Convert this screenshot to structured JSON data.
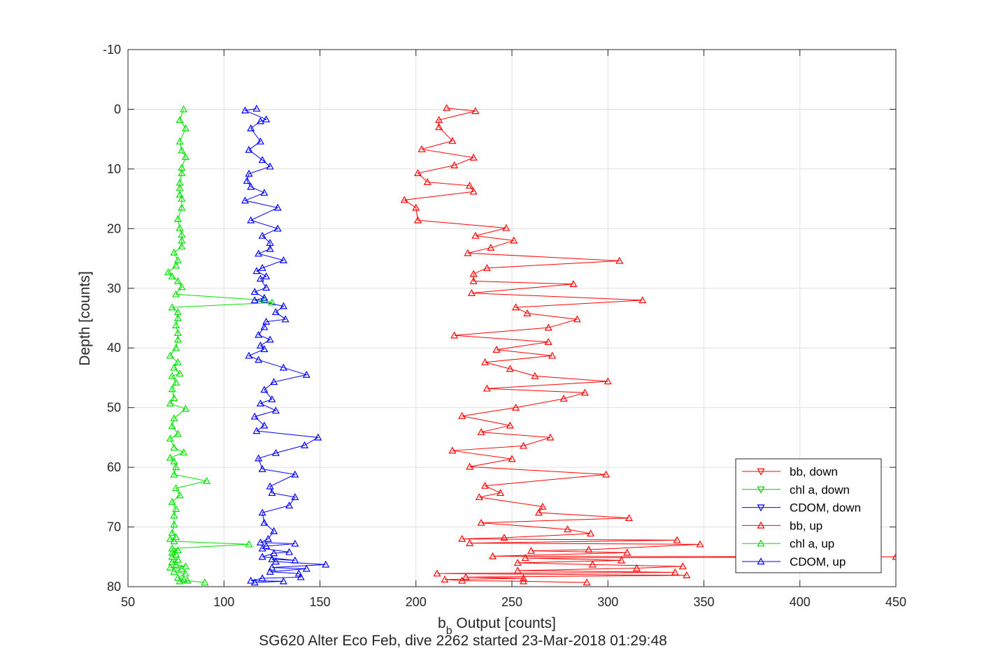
{
  "chart_data": {
    "type": "line",
    "title": "",
    "xlabel_main": "b",
    "xlabel_sub": "b",
    "xlabel_rest": " Output [counts]",
    "ylabel": "Depth [counts]",
    "footer": "SG620 Alter Eco Feb, dive 2262 started 23-Mar-2018 01:29:48",
    "xlim": [
      50,
      450
    ],
    "ylim": [
      -10,
      80
    ],
    "y_reversed": true,
    "xticks": [
      50,
      100,
      150,
      200,
      250,
      300,
      350,
      400,
      450
    ],
    "yticks": [
      -10,
      0,
      10,
      20,
      30,
      40,
      50,
      60,
      70,
      80
    ],
    "grid": true,
    "legend_position": "bottom-right",
    "series": [
      {
        "name": "bb, down",
        "color": "#ff0000",
        "marker": "triangle-down",
        "points": []
      },
      {
        "name": "chl a, down",
        "color": "#00cc00",
        "marker": "triangle-down",
        "points": []
      },
      {
        "name": "CDOM, down",
        "color": "#0000ff",
        "marker": "triangle-down",
        "points": []
      },
      {
        "name": "bb, up",
        "color": "#ff0000",
        "marker": "triangle-up",
        "points": [
          [
            289,
            79.3
          ],
          [
            256,
            79.1
          ],
          [
            224,
            79.0
          ],
          [
            215,
            78.8
          ],
          [
            256,
            78.6
          ],
          [
            226,
            78.4
          ],
          [
            341,
            78.1
          ],
          [
            211,
            77.8
          ],
          [
            335,
            77.6
          ],
          [
            253,
            77.3
          ],
          [
            315,
            76.9
          ],
          [
            339,
            76.6
          ],
          [
            292,
            76.3
          ],
          [
            253,
            76.0
          ],
          [
            307,
            75.6
          ],
          [
            257,
            75.2
          ],
          [
            450,
            75.0
          ],
          [
            240,
            74.9
          ],
          [
            310,
            74.3
          ],
          [
            260,
            74.0
          ],
          [
            290,
            73.8
          ],
          [
            348,
            72.9
          ],
          [
            228,
            72.7
          ],
          [
            336,
            72.2
          ],
          [
            224,
            72.0
          ],
          [
            246,
            71.8
          ],
          [
            291,
            71.1
          ],
          [
            279,
            70.4
          ],
          [
            234,
            69.3
          ],
          [
            311,
            68.5
          ],
          [
            264,
            67.6
          ],
          [
            266,
            66.6
          ],
          [
            233,
            65.0
          ],
          [
            244,
            64.3
          ],
          [
            236,
            63.1
          ],
          [
            299,
            61.2
          ],
          [
            228,
            59.9
          ],
          [
            250,
            58.6
          ],
          [
            219,
            57.2
          ],
          [
            256,
            56.4
          ],
          [
            270,
            55.0
          ],
          [
            234,
            54.1
          ],
          [
            249,
            53.0
          ],
          [
            224,
            51.4
          ],
          [
            252,
            50.0
          ],
          [
            277,
            48.5
          ],
          [
            288,
            47.5
          ],
          [
            237,
            46.8
          ],
          [
            300,
            45.6
          ],
          [
            262,
            44.7
          ],
          [
            249,
            43.5
          ],
          [
            236,
            42.4
          ],
          [
            271,
            41.3
          ],
          [
            242,
            40.3
          ],
          [
            269,
            39.0
          ],
          [
            220,
            37.9
          ],
          [
            269,
            36.6
          ],
          [
            284,
            35.2
          ],
          [
            258,
            34.2
          ],
          [
            252,
            33.2
          ],
          [
            318,
            32.0
          ],
          [
            229,
            30.8
          ],
          [
            282,
            29.3
          ],
          [
            230,
            28.8
          ],
          [
            230,
            27.6
          ],
          [
            237,
            26.6
          ],
          [
            306,
            25.4
          ],
          [
            227,
            24.1
          ],
          [
            239,
            23.2
          ],
          [
            251,
            22.0
          ],
          [
            231,
            21.2
          ],
          [
            247,
            19.9
          ],
          [
            201,
            18.6
          ],
          [
            200,
            16.5
          ],
          [
            194,
            15.2
          ],
          [
            230,
            13.8
          ],
          [
            228,
            12.8
          ],
          [
            206,
            12.2
          ],
          [
            201,
            10.7
          ],
          [
            220,
            9.4
          ],
          [
            230,
            8.1
          ],
          [
            203,
            6.7
          ],
          [
            219,
            5.3
          ],
          [
            212,
            3.0
          ],
          [
            212,
            1.8
          ],
          [
            231,
            0.3
          ],
          [
            216,
            -0.2
          ]
        ]
      },
      {
        "name": "chl a, up",
        "color": "#00e000",
        "marker": "triangle-up",
        "points": [
          [
            90,
            79.3
          ],
          [
            81,
            79.0
          ],
          [
            77,
            79.1
          ],
          [
            79,
            78.8
          ],
          [
            76,
            78.5
          ],
          [
            80,
            77.8
          ],
          [
            74,
            77.5
          ],
          [
            78,
            77.0
          ],
          [
            72,
            76.8
          ],
          [
            80,
            76.6
          ],
          [
            75,
            76.3
          ],
          [
            73,
            75.9
          ],
          [
            76,
            75.5
          ],
          [
            73,
            75.0
          ],
          [
            75,
            74.6
          ],
          [
            73,
            74.3
          ],
          [
            76,
            73.9
          ],
          [
            73,
            73.6
          ],
          [
            113,
            72.9
          ],
          [
            74,
            72.4
          ],
          [
            72,
            72.0
          ],
          [
            75,
            71.7
          ],
          [
            73,
            71.0
          ],
          [
            74,
            69.6
          ],
          [
            74,
            68.1
          ],
          [
            75,
            67.0
          ],
          [
            73,
            65.8
          ],
          [
            77,
            64.7
          ],
          [
            75,
            63.5
          ],
          [
            91,
            62.3
          ],
          [
            74,
            61.2
          ],
          [
            75,
            60.0
          ],
          [
            74,
            59.0
          ],
          [
            72,
            58.4
          ],
          [
            79,
            57.5
          ],
          [
            74,
            56.7
          ],
          [
            72,
            55.2
          ],
          [
            76,
            54.4
          ],
          [
            73,
            53.1
          ],
          [
            74,
            51.8
          ],
          [
            80,
            50.2
          ],
          [
            72,
            49.3
          ],
          [
            74,
            48.4
          ],
          [
            73,
            46.9
          ],
          [
            75,
            45.8
          ],
          [
            73,
            44.7
          ],
          [
            77,
            44.3
          ],
          [
            74,
            43.3
          ],
          [
            76,
            42.4
          ],
          [
            72,
            41.3
          ],
          [
            75,
            40.0
          ],
          [
            76,
            38.6
          ],
          [
            76,
            37.5
          ],
          [
            75,
            36.2
          ],
          [
            76,
            35.0
          ],
          [
            76,
            34.0
          ],
          [
            73,
            33.2
          ],
          [
            125,
            32.4
          ],
          [
            121,
            32.0
          ],
          [
            75,
            31.0
          ],
          [
            78,
            29.8
          ],
          [
            76,
            28.8
          ],
          [
            73,
            28.0
          ],
          [
            71,
            27.3
          ],
          [
            75,
            26.2
          ],
          [
            76,
            25.3
          ],
          [
            74,
            24.0
          ],
          [
            78,
            23.0
          ],
          [
            78,
            22.0
          ],
          [
            78,
            21.0
          ],
          [
            77,
            19.9
          ],
          [
            76,
            18.4
          ],
          [
            78,
            16.5
          ],
          [
            78,
            15.0
          ],
          [
            77,
            14.3
          ],
          [
            77,
            13.2
          ],
          [
            77,
            12.3
          ],
          [
            78,
            10.7
          ],
          [
            78,
            9.8
          ],
          [
            80,
            8.0
          ],
          [
            78,
            6.9
          ],
          [
            77,
            5.4
          ],
          [
            80,
            3.2
          ],
          [
            77,
            1.8
          ],
          [
            79,
            0.0
          ]
        ]
      },
      {
        "name": "CDOM, up",
        "color": "#0000ff",
        "marker": "triangle-up",
        "points": [
          [
            116,
            79.3
          ],
          [
            131,
            79.1
          ],
          [
            114,
            79.0
          ],
          [
            120,
            78.6
          ],
          [
            140,
            78.4
          ],
          [
            139,
            77.8
          ],
          [
            124,
            77.5
          ],
          [
            143,
            77.0
          ],
          [
            125,
            76.8
          ],
          [
            153,
            76.3
          ],
          [
            127,
            75.8
          ],
          [
            125,
            75.4
          ],
          [
            137,
            75.6
          ],
          [
            120,
            75.0
          ],
          [
            126,
            74.4
          ],
          [
            134,
            74.2
          ],
          [
            120,
            73.6
          ],
          [
            122,
            73.2
          ],
          [
            137,
            72.8
          ],
          [
            119,
            72.6
          ],
          [
            123,
            72.0
          ],
          [
            126,
            70.7
          ],
          [
            121,
            69.3
          ],
          [
            120,
            67.6
          ],
          [
            134,
            66.4
          ],
          [
            137,
            65.0
          ],
          [
            125,
            64.3
          ],
          [
            124,
            63.2
          ],
          [
            137,
            61.2
          ],
          [
            120,
            60.3
          ],
          [
            118,
            58.5
          ],
          [
            127,
            57.6
          ],
          [
            142,
            56.3
          ],
          [
            149,
            55.0
          ],
          [
            117,
            53.9
          ],
          [
            121,
            53.0
          ],
          [
            116,
            51.5
          ],
          [
            127,
            50.5
          ],
          [
            119,
            49.3
          ],
          [
            125,
            48.6
          ],
          [
            121,
            47.0
          ],
          [
            126,
            45.7
          ],
          [
            143,
            44.5
          ],
          [
            131,
            43.3
          ],
          [
            118,
            42.0
          ],
          [
            113,
            41.3
          ],
          [
            121,
            40.2
          ],
          [
            119,
            39.6
          ],
          [
            124,
            38.6
          ],
          [
            118,
            37.8
          ],
          [
            121,
            36.5
          ],
          [
            122,
            35.6
          ],
          [
            132,
            35.2
          ],
          [
            127,
            34.0
          ],
          [
            131,
            33.0
          ],
          [
            116,
            32.0
          ],
          [
            121,
            31.6
          ],
          [
            116,
            30.6
          ],
          [
            122,
            29.9
          ],
          [
            119,
            28.4
          ],
          [
            122,
            28.0
          ],
          [
            117,
            27.1
          ],
          [
            120,
            26.6
          ],
          [
            131,
            25.3
          ],
          [
            118,
            24.2
          ],
          [
            124,
            23.4
          ],
          [
            124,
            22.4
          ],
          [
            120,
            21.2
          ],
          [
            128,
            20.0
          ],
          [
            114,
            18.6
          ],
          [
            128,
            16.5
          ],
          [
            111,
            15.3
          ],
          [
            121,
            14.0
          ],
          [
            114,
            13.0
          ],
          [
            112,
            12.0
          ],
          [
            113,
            10.8
          ],
          [
            124,
            9.6
          ],
          [
            120,
            8.5
          ],
          [
            113,
            6.8
          ],
          [
            119,
            5.4
          ],
          [
            114,
            3.2
          ],
          [
            119,
            2.0
          ],
          [
            122,
            1.7
          ],
          [
            111,
            0.2
          ],
          [
            117,
            -0.1
          ]
        ]
      }
    ]
  }
}
